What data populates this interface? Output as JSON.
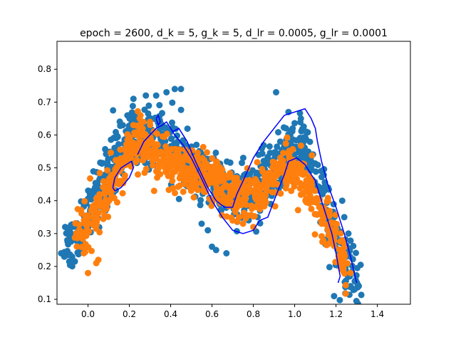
{
  "chart_data": {
    "type": "scatter",
    "title": "epoch = 2600, d_k = 5, g_k = 5, d_lr = 0.0005, g_lr = 0.0001",
    "xlabel": "",
    "ylabel": "",
    "xlim": [
      -0.15,
      1.56
    ],
    "ylim": [
      0.085,
      0.885
    ],
    "xticks": [
      0.0,
      0.2,
      0.4,
      0.6,
      0.8,
      1.0,
      1.2,
      1.4
    ],
    "xtick_labels": [
      "0.0",
      "0.2",
      "0.4",
      "0.6",
      "0.8",
      "1.0",
      "1.2",
      "1.4"
    ],
    "yticks": [
      0.1,
      0.2,
      0.3,
      0.4,
      0.5,
      0.6,
      0.7,
      0.8
    ],
    "ytick_labels": [
      "0.1",
      "0.2",
      "0.3",
      "0.4",
      "0.5",
      "0.6",
      "0.7",
      "0.8"
    ],
    "grid": false,
    "legend": "none",
    "colors": {
      "real": "#1f77b4",
      "generated": "#ff7f0e",
      "contour": "#0000ff"
    },
    "series": [
      {
        "kind": "points",
        "color": "#1f77b4",
        "curve": [
          [
            -0.12,
            0.25
          ],
          [
            -0.05,
            0.3
          ],
          [
            0.0,
            0.36
          ],
          [
            0.05,
            0.42
          ],
          [
            0.1,
            0.48
          ],
          [
            0.15,
            0.53
          ],
          [
            0.2,
            0.58
          ],
          [
            0.25,
            0.61
          ],
          [
            0.3,
            0.61
          ],
          [
            0.35,
            0.59
          ],
          [
            0.4,
            0.56
          ],
          [
            0.45,
            0.53
          ],
          [
            0.5,
            0.5
          ],
          [
            0.55,
            0.48
          ],
          [
            0.6,
            0.47
          ],
          [
            0.65,
            0.45
          ],
          [
            0.7,
            0.44
          ],
          [
            0.75,
            0.43
          ],
          [
            0.8,
            0.44
          ],
          [
            0.85,
            0.46
          ],
          [
            0.9,
            0.5
          ],
          [
            0.95,
            0.55
          ],
          [
            1.0,
            0.57
          ],
          [
            1.05,
            0.55
          ],
          [
            1.1,
            0.47
          ],
          [
            1.15,
            0.37
          ],
          [
            1.2,
            0.28
          ],
          [
            1.25,
            0.2
          ],
          [
            1.31,
            0.15
          ]
        ],
        "extra": [
          [
            0.22,
            0.71
          ],
          [
            0.28,
            0.72
          ],
          [
            0.33,
            0.72
          ],
          [
            0.38,
            0.73
          ],
          [
            0.42,
            0.74
          ],
          [
            0.45,
            0.74
          ],
          [
            0.2,
            0.66
          ],
          [
            0.91,
            0.73
          ],
          [
            0.97,
            0.67
          ],
          [
            1.03,
            0.65
          ],
          [
            0.99,
            0.62
          ],
          [
            0.93,
            0.58
          ],
          [
            -0.13,
            0.24
          ],
          [
            -0.1,
            0.28
          ],
          [
            0.6,
            0.26
          ],
          [
            0.62,
            0.25
          ],
          [
            0.67,
            0.24
          ],
          [
            1.25,
            0.14
          ],
          [
            1.27,
            0.14
          ],
          [
            1.29,
            0.13
          ],
          [
            1.31,
            0.14
          ],
          [
            1.23,
            0.4
          ],
          [
            1.24,
            0.35
          ],
          [
            1.26,
            0.3
          ],
          [
            0.55,
            0.33
          ],
          [
            0.58,
            0.31
          ]
        ]
      },
      {
        "kind": "points",
        "color": "#ff7f0e",
        "curve": [
          [
            -0.05,
            0.3
          ],
          [
            0.0,
            0.32
          ],
          [
            0.05,
            0.38
          ],
          [
            0.1,
            0.43
          ],
          [
            0.15,
            0.5
          ],
          [
            0.2,
            0.55
          ],
          [
            0.25,
            0.57
          ],
          [
            0.3,
            0.56
          ],
          [
            0.35,
            0.53
          ],
          [
            0.4,
            0.51
          ],
          [
            0.45,
            0.49
          ],
          [
            0.5,
            0.48
          ],
          [
            0.55,
            0.48
          ],
          [
            0.6,
            0.47
          ],
          [
            0.65,
            0.45
          ],
          [
            0.7,
            0.43
          ],
          [
            0.75,
            0.41
          ],
          [
            0.8,
            0.42
          ],
          [
            0.85,
            0.44
          ],
          [
            0.9,
            0.47
          ],
          [
            0.95,
            0.5
          ],
          [
            1.0,
            0.5
          ],
          [
            1.05,
            0.46
          ],
          [
            1.1,
            0.4
          ],
          [
            1.15,
            0.33
          ],
          [
            1.2,
            0.26
          ],
          [
            1.25,
            0.2
          ]
        ],
        "extra": [
          [
            0.0,
            0.18
          ],
          [
            0.04,
            0.21
          ],
          [
            0.05,
            0.22
          ],
          [
            -0.02,
            0.24
          ],
          [
            0.22,
            0.63
          ],
          [
            0.25,
            0.65
          ],
          [
            0.3,
            0.64
          ],
          [
            0.32,
            0.43
          ],
          [
            0.15,
            0.45
          ],
          [
            0.75,
            0.33
          ],
          [
            0.73,
            0.35
          ],
          [
            1.27,
            0.18
          ],
          [
            0.8,
            0.32
          ],
          [
            0.7,
            0.34
          ]
        ]
      }
    ],
    "contours": [
      [
        [
          0.24,
          0.54
        ],
        [
          0.27,
          0.58
        ],
        [
          0.33,
          0.62
        ],
        [
          0.36,
          0.63
        ],
        [
          0.38,
          0.64
        ],
        [
          0.42,
          0.6
        ],
        [
          0.46,
          0.57
        ],
        [
          0.5,
          0.53
        ],
        [
          0.54,
          0.48
        ],
        [
          0.57,
          0.44
        ],
        [
          0.6,
          0.4
        ],
        [
          0.65,
          0.35
        ],
        [
          0.7,
          0.31
        ],
        [
          0.75,
          0.3
        ],
        [
          0.8,
          0.31
        ],
        [
          0.83,
          0.34
        ],
        [
          0.87,
          0.35
        ],
        [
          0.9,
          0.4
        ],
        [
          0.95,
          0.48
        ],
        [
          0.97,
          0.52
        ],
        [
          1.01,
          0.53
        ],
        [
          1.05,
          0.51
        ],
        [
          1.1,
          0.46
        ],
        [
          1.12,
          0.42
        ],
        [
          1.15,
          0.36
        ],
        [
          1.18,
          0.3
        ],
        [
          1.2,
          0.24
        ],
        [
          1.22,
          0.17
        ],
        [
          1.21,
          0.15
        ]
      ],
      [
        [
          0.41,
          0.61
        ],
        [
          0.44,
          0.62
        ],
        [
          0.48,
          0.58
        ],
        [
          0.52,
          0.52
        ],
        [
          0.55,
          0.48
        ],
        [
          0.58,
          0.44
        ],
        [
          0.62,
          0.4
        ],
        [
          0.66,
          0.38
        ],
        [
          0.7,
          0.38
        ],
        [
          0.72,
          0.42
        ],
        [
          0.75,
          0.46
        ],
        [
          0.8,
          0.53
        ],
        [
          0.85,
          0.58
        ],
        [
          0.9,
          0.62
        ],
        [
          0.95,
          0.66
        ],
        [
          1.0,
          0.67
        ],
        [
          1.05,
          0.68
        ],
        [
          1.08,
          0.65
        ],
        [
          1.1,
          0.62
        ],
        [
          1.11,
          0.58
        ],
        [
          1.13,
          0.52
        ],
        [
          1.16,
          0.45
        ],
        [
          1.2,
          0.38
        ],
        [
          1.24,
          0.3
        ],
        [
          1.27,
          0.23
        ],
        [
          1.3,
          0.15
        ]
      ],
      [
        [
          0.12,
          0.44
        ],
        [
          0.13,
          0.47
        ],
        [
          0.16,
          0.5
        ],
        [
          0.21,
          0.52
        ],
        [
          0.22,
          0.5
        ],
        [
          0.2,
          0.47
        ],
        [
          0.16,
          0.44
        ],
        [
          0.13,
          0.43
        ],
        [
          0.12,
          0.44
        ]
      ],
      [
        [
          0.33,
          0.65
        ],
        [
          0.34,
          0.66
        ],
        [
          0.35,
          0.64
        ],
        [
          0.34,
          0.63
        ],
        [
          0.33,
          0.65
        ]
      ]
    ]
  }
}
